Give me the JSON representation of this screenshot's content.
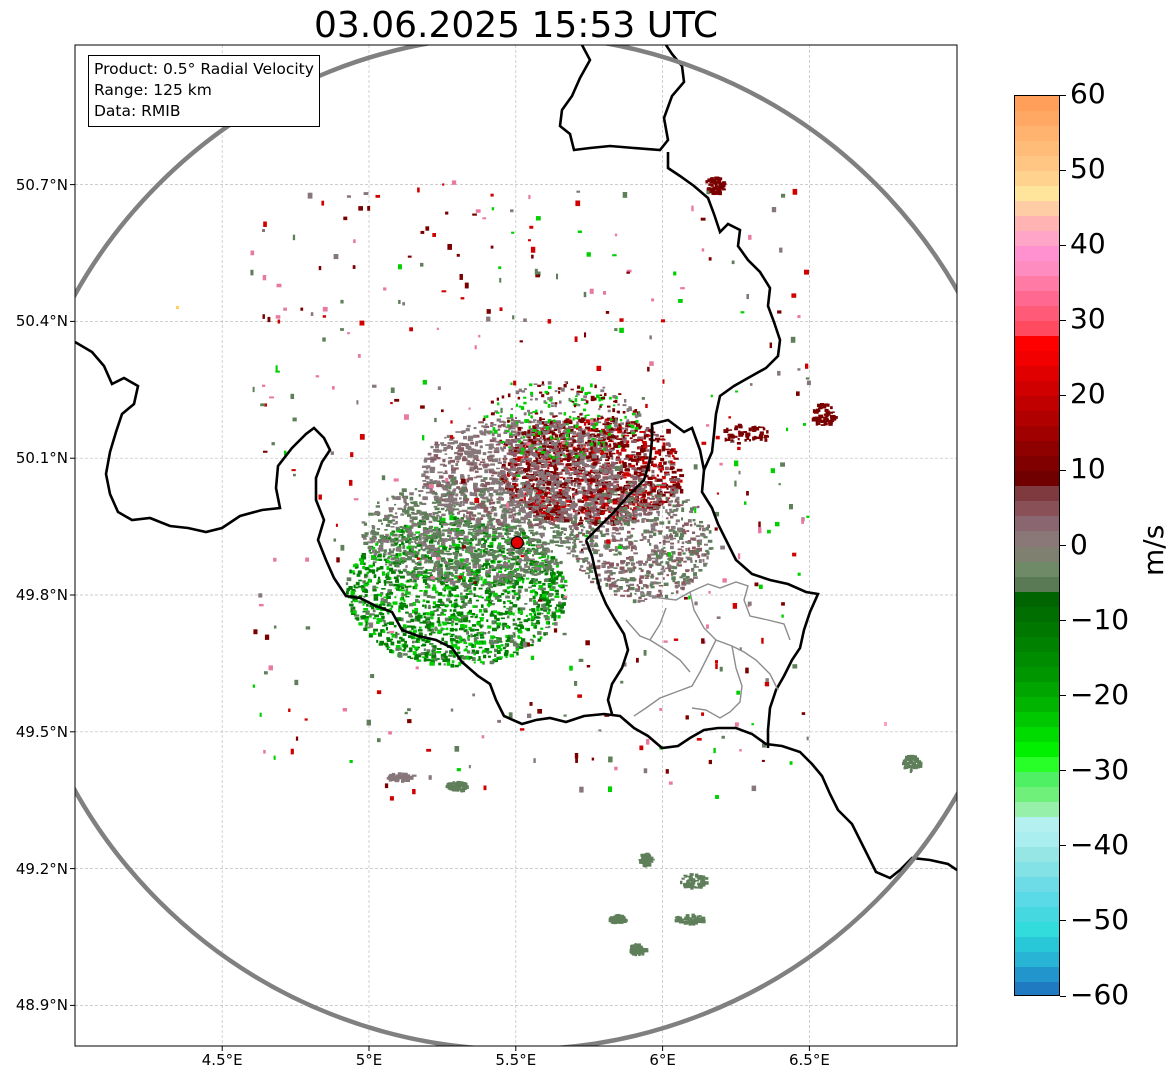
{
  "title": "03.06.2025 15:53 UTC",
  "info_box": {
    "product": "Product: 0.5° Radial Velocity",
    "range": "Range: 125 km",
    "data": "Data: RMIB"
  },
  "lat_ticks": [
    {
      "value": 50.7,
      "label": "50.7°N"
    },
    {
      "value": 50.4,
      "label": "50.4°N"
    },
    {
      "value": 50.1,
      "label": "50.1°N"
    },
    {
      "value": 49.8,
      "label": "49.8°N"
    },
    {
      "value": 49.5,
      "label": "49.5°N"
    },
    {
      "value": 49.2,
      "label": "49.2°N"
    },
    {
      "value": 48.9,
      "label": "48.9°N"
    }
  ],
  "lon_ticks": [
    {
      "value": 4.5,
      "label": "4.5°E"
    },
    {
      "value": 5.0,
      "label": "5°E"
    },
    {
      "value": 5.5,
      "label": "5.5°E"
    },
    {
      "value": 6.0,
      "label": "6°E"
    },
    {
      "value": 6.5,
      "label": "6.5°E"
    }
  ],
  "colorbar": {
    "unit": "m/s",
    "min": -60,
    "max": 60,
    "ticks": [
      {
        "value": 60,
        "label": "60"
      },
      {
        "value": 50,
        "label": "50"
      },
      {
        "value": 40,
        "label": "40"
      },
      {
        "value": 30,
        "label": "30"
      },
      {
        "value": 20,
        "label": "20"
      },
      {
        "value": 10,
        "label": "10"
      },
      {
        "value": 0,
        "label": "0"
      },
      {
        "value": -10,
        "label": "−10"
      },
      {
        "value": -20,
        "label": "−20"
      },
      {
        "value": -30,
        "label": "−30"
      },
      {
        "value": -40,
        "label": "−40"
      },
      {
        "value": -50,
        "label": "−50"
      },
      {
        "value": -60,
        "label": "−60"
      }
    ],
    "bands": [
      {
        "from": 58,
        "to": 60,
        "color": "#ff9f5a"
      },
      {
        "from": 56,
        "to": 58,
        "color": "#ffa864"
      },
      {
        "from": 54,
        "to": 56,
        "color": "#ffb36e"
      },
      {
        "from": 52,
        "to": 54,
        "color": "#ffbb78"
      },
      {
        "from": 50,
        "to": 52,
        "color": "#ffc582"
      },
      {
        "from": 48,
        "to": 50,
        "color": "#ffd38e"
      },
      {
        "from": 46,
        "to": 48,
        "color": "#ffe49b"
      },
      {
        "from": 44,
        "to": 46,
        "color": "#ffcda5"
      },
      {
        "from": 42,
        "to": 44,
        "color": "#ffb3b3"
      },
      {
        "from": 40,
        "to": 42,
        "color": "#ffa5c8"
      },
      {
        "from": 38,
        "to": 40,
        "color": "#ff91d0"
      },
      {
        "from": 36,
        "to": 38,
        "color": "#ff8cc0"
      },
      {
        "from": 34,
        "to": 36,
        "color": "#ff7aa5"
      },
      {
        "from": 32,
        "to": 34,
        "color": "#ff6890"
      },
      {
        "from": 30,
        "to": 32,
        "color": "#ff5a78"
      },
      {
        "from": 28,
        "to": 30,
        "color": "#ff4a60"
      },
      {
        "from": 26,
        "to": 28,
        "color": "#ff0000"
      },
      {
        "from": 24,
        "to": 26,
        "color": "#f20000"
      },
      {
        "from": 22,
        "to": 24,
        "color": "#e00000"
      },
      {
        "from": 20,
        "to": 22,
        "color": "#d00000"
      },
      {
        "from": 18,
        "to": 20,
        "color": "#c00000"
      },
      {
        "from": 16,
        "to": 18,
        "color": "#b00000"
      },
      {
        "from": 14,
        "to": 16,
        "color": "#a00000"
      },
      {
        "from": 12,
        "to": 14,
        "color": "#8f0000"
      },
      {
        "from": 10,
        "to": 12,
        "color": "#800000"
      },
      {
        "from": 8,
        "to": 10,
        "color": "#700000"
      },
      {
        "from": 6,
        "to": 8,
        "color": "#7e3a3e"
      },
      {
        "from": 4,
        "to": 6,
        "color": "#8a5058"
      },
      {
        "from": 2,
        "to": 4,
        "color": "#8a6670"
      },
      {
        "from": 0,
        "to": 2,
        "color": "#8a7878"
      },
      {
        "from": -2,
        "to": 0,
        "color": "#808070"
      },
      {
        "from": -4,
        "to": -2,
        "color": "#6e8a66"
      },
      {
        "from": -6,
        "to": -4,
        "color": "#5a7a55"
      },
      {
        "from": -8,
        "to": -6,
        "color": "#006400"
      },
      {
        "from": -10,
        "to": -8,
        "color": "#006e00"
      },
      {
        "from": -12,
        "to": -10,
        "color": "#007800"
      },
      {
        "from": -14,
        "to": -12,
        "color": "#008200"
      },
      {
        "from": -16,
        "to": -14,
        "color": "#008c00"
      },
      {
        "from": -18,
        "to": -16,
        "color": "#009600"
      },
      {
        "from": -20,
        "to": -18,
        "color": "#00a500"
      },
      {
        "from": -22,
        "to": -20,
        "color": "#00b400"
      },
      {
        "from": -24,
        "to": -22,
        "color": "#00c800"
      },
      {
        "from": -26,
        "to": -24,
        "color": "#00dc00"
      },
      {
        "from": -28,
        "to": -26,
        "color": "#00f000"
      },
      {
        "from": -30,
        "to": -28,
        "color": "#28ff28"
      },
      {
        "from": -32,
        "to": -30,
        "color": "#50f064"
      },
      {
        "from": -34,
        "to": -32,
        "color": "#6ef07a"
      },
      {
        "from": -36,
        "to": -34,
        "color": "#96f0aa"
      },
      {
        "from": -38,
        "to": -36,
        "color": "#b4f0f0"
      },
      {
        "from": -40,
        "to": -38,
        "color": "#aaeef0"
      },
      {
        "from": -42,
        "to": -40,
        "color": "#96e6e6"
      },
      {
        "from": -44,
        "to": -42,
        "color": "#82e2e6"
      },
      {
        "from": -46,
        "to": -44,
        "color": "#6edce6"
      },
      {
        "from": -48,
        "to": -46,
        "color": "#5adae6"
      },
      {
        "from": -50,
        "to": -48,
        "color": "#46d8e0"
      },
      {
        "from": -52,
        "to": -50,
        "color": "#32dcdc"
      },
      {
        "from": -54,
        "to": -52,
        "color": "#28c8d8"
      },
      {
        "from": -56,
        "to": -54,
        "color": "#28b4d4"
      },
      {
        "from": -58,
        "to": -56,
        "color": "#2296cc"
      },
      {
        "from": -60,
        "to": -58,
        "color": "#1f7ac2"
      }
    ]
  },
  "map": {
    "lon_range": [
      4.0,
      7.0
    ],
    "lat_range": [
      48.8,
      51.0
    ],
    "radar_site": {
      "lon": 5.505,
      "lat": 49.915
    },
    "range_ring_color": "#808080",
    "velocity_colors": {
      "inbound_strong": "#008000",
      "inbound": "#5f7f5a",
      "neutral": "#86777a",
      "outbound": "#8a5a62",
      "outbound_strong": "#7a0000",
      "red": "#d00000",
      "bright_green": "#00d000"
    }
  }
}
